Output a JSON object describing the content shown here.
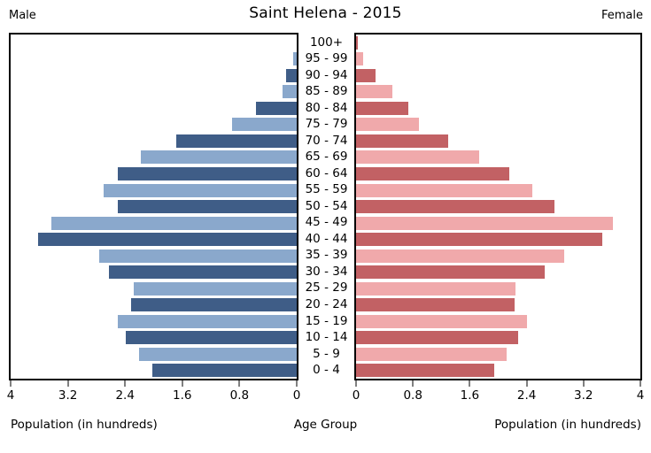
{
  "chart_data": {
    "type": "bar",
    "subtype": "population-pyramid",
    "title": "Saint Helena - 2015",
    "male_label": "Male",
    "female_label": "Female",
    "age_axis_label": "Age Group",
    "xlabel_male": "Population (in hundreds)",
    "xlabel_female": "Population (in hundreds)",
    "xlim": [
      0,
      4
    ],
    "grid": false,
    "male_tick_labels": [
      "4",
      "3.2",
      "2.4",
      "1.6",
      "0.8",
      "0"
    ],
    "female_tick_labels": [
      "0",
      "0.8",
      "1.6",
      "2.4",
      "3.2",
      "4"
    ],
    "age_groups": [
      "100+",
      "95 - 99",
      "90 - 94",
      "85 - 89",
      "80 - 84",
      "75 - 79",
      "70 - 74",
      "65 - 69",
      "60 - 64",
      "55 - 59",
      "50 - 54",
      "45 - 49",
      "40 - 44",
      "35 - 39",
      "30 - 34",
      "25 - 29",
      "20 - 24",
      "15 - 19",
      "10 - 14",
      "5 - 9",
      "0 - 4"
    ],
    "series": [
      {
        "name": "Male",
        "values": [
          0.0,
          0.05,
          0.15,
          0.2,
          0.57,
          0.9,
          1.68,
          2.18,
          2.5,
          2.7,
          2.5,
          3.43,
          3.62,
          2.76,
          2.62,
          2.28,
          2.32,
          2.5,
          2.39,
          2.21,
          2.02
        ]
      },
      {
        "name": "Female",
        "values": [
          0.03,
          0.1,
          0.27,
          0.51,
          0.74,
          0.89,
          1.3,
          1.73,
          2.16,
          2.48,
          2.79,
          3.61,
          3.46,
          2.93,
          2.66,
          2.24,
          2.23,
          2.41,
          2.28,
          2.12,
          1.95
        ]
      }
    ],
    "colors": {
      "male_dark": "#3f5d87",
      "male_light": "#8aa8cc",
      "female_dark": "#c26164",
      "female_light": "#f0a9ab",
      "axis": "#000000"
    }
  }
}
